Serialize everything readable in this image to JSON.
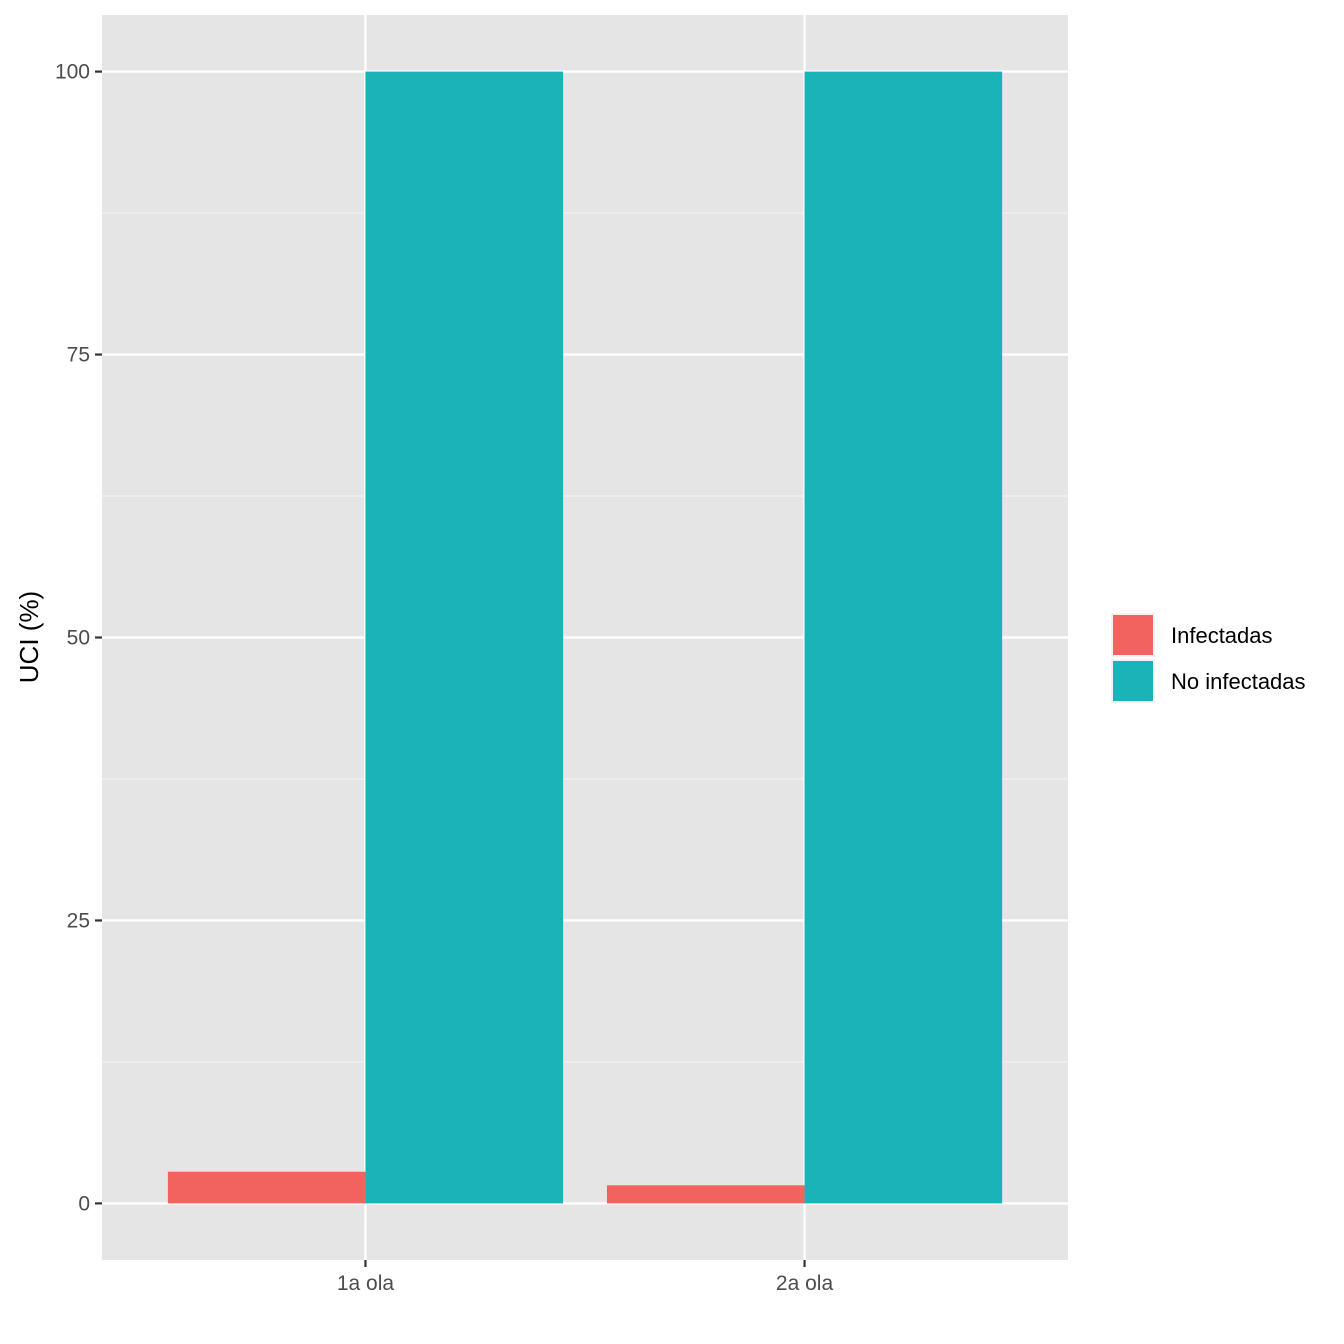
{
  "chart_data": {
    "type": "bar",
    "title": "",
    "xlabel": "",
    "ylabel": "UCI (%)",
    "categories": [
      "1a ola",
      "2a ola"
    ],
    "series": [
      {
        "name": "Infectadas",
        "values": [
          2.8,
          1.6
        ],
        "color": "#F8766D"
      },
      {
        "name": "No infectadas",
        "values": [
          100,
          100
        ],
        "color": "#00BFC4"
      }
    ],
    "ylim": [
      -5,
      105
    ],
    "yticks": [
      0,
      25,
      50,
      75,
      100
    ],
    "ytick_labels": [
      "0",
      "25",
      "50",
      "75",
      "100"
    ],
    "grid": true,
    "legend_position": "right",
    "panel_background": "#EBEBEB",
    "bar_colors_display": [
      "#F26360",
      "#1AB3B7"
    ]
  }
}
